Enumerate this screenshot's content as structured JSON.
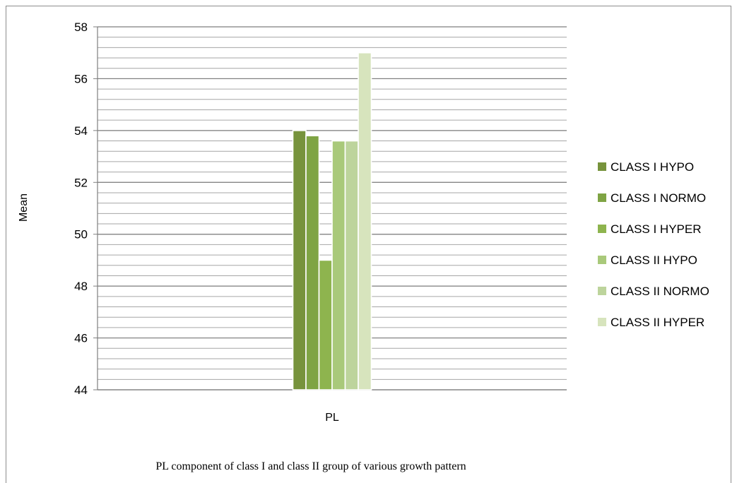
{
  "chart_data": {
    "type": "bar",
    "categories": [
      "PL"
    ],
    "ylabel": "Mean",
    "xlabel": "",
    "ylim": [
      44,
      58
    ],
    "yticks": [
      44,
      46,
      48,
      50,
      52,
      54,
      56,
      58
    ],
    "minor_grid_step": 0.4,
    "grid": true,
    "legend_position": "right",
    "series": [
      {
        "name": "CLASS I HYPO",
        "values": [
          54.0
        ],
        "color": "#77933c"
      },
      {
        "name": "CLASS I NORMO",
        "values": [
          53.8
        ],
        "color": "#7fa444"
      },
      {
        "name": "CLASS I HYPER",
        "values": [
          49.0
        ],
        "color": "#8eb44e"
      },
      {
        "name": "CLASS II HYPO",
        "values": [
          53.6
        ],
        "color": "#a9c97a"
      },
      {
        "name": "CLASS II NORMO",
        "values": [
          53.6
        ],
        "color": "#bdd49c"
      },
      {
        "name": "CLASS II HYPER",
        "values": [
          57.0
        ],
        "color": "#d7e4bd"
      }
    ],
    "caption": "PL component of class I and class II group of various growth pattern"
  }
}
